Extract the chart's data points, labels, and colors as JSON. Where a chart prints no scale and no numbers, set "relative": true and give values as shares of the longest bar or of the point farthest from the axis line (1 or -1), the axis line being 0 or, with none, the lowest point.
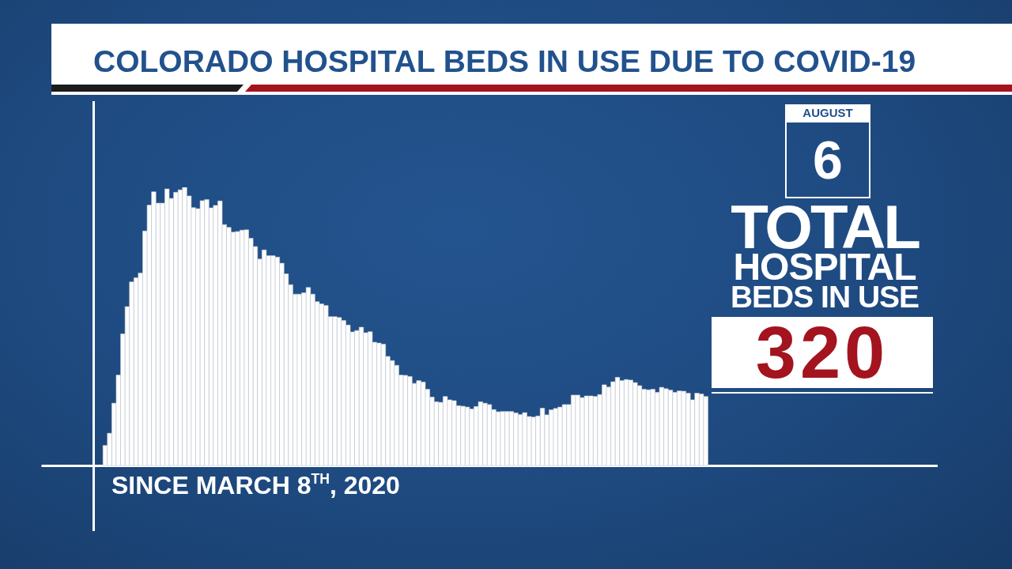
{
  "chart_data": {
    "type": "bar",
    "title": "COLORADO HOSPITAL BEDS IN USE DUE TO COVID-19",
    "xlabel": "SINCE MARCH 8$^{TH}$, 2020",
    "relative": true,
    "color": "#ffffff",
    "categories": [
      null,
      null,
      null,
      null,
      null,
      null,
      null,
      null,
      null,
      null,
      null,
      null,
      null,
      null,
      null,
      null,
      null,
      null,
      null,
      null,
      null,
      null,
      null,
      null,
      null,
      null,
      null,
      null,
      null,
      null,
      null,
      null,
      null,
      null,
      null,
      null,
      null,
      null,
      null,
      null,
      null,
      null,
      null,
      null,
      null,
      null,
      null,
      null,
      null,
      null,
      null,
      null,
      null,
      null,
      null,
      null,
      null,
      null,
      null,
      null,
      null,
      null,
      null,
      null,
      null,
      null,
      null,
      null,
      null,
      null,
      null,
      null,
      null,
      null,
      null,
      null,
      null,
      null,
      null,
      null,
      null,
      null,
      null,
      null,
      null,
      null,
      null,
      null,
      null,
      null,
      null,
      null,
      null,
      null,
      null,
      null,
      null,
      null,
      null,
      null,
      null,
      null,
      null,
      null,
      null,
      null,
      null,
      null,
      null,
      null,
      null,
      null,
      null,
      null,
      null,
      null,
      null,
      null,
      null,
      null,
      null,
      null,
      null,
      null,
      null,
      null,
      null,
      null,
      null,
      null,
      null,
      null,
      null,
      null,
      null,
      null,
      null
    ],
    "values": [
      0.072,
      0.116,
      0.224,
      0.325,
      0.473,
      0.571,
      0.66,
      0.675,
      0.692,
      0.843,
      0.936,
      0.984,
      0.943,
      0.943,
      0.994,
      0.96,
      0.982,
      0.991,
      1,
      0.969,
      0.927,
      0.923,
      0.952,
      0.956,
      0.926,
      0.935,
      0.951,
      0.866,
      0.856,
      0.839,
      0.841,
      0.846,
      0.847,
      0.817,
      0.787,
      0.742,
      0.775,
      0.754,
      0.754,
      0.749,
      0.727,
      0.689,
      0.65,
      0.616,
      0.616,
      0.621,
      0.64,
      0.616,
      0.589,
      0.581,
      0.575,
      0.535,
      0.535,
      0.532,
      0.521,
      0.505,
      0.48,
      0.485,
      0.497,
      0.477,
      0.481,
      0.443,
      0.44,
      0.436,
      0.392,
      0.377,
      0.36,
      0.325,
      0.324,
      0.32,
      0.295,
      0.305,
      0.3,
      0.274,
      0.246,
      0.229,
      0.227,
      0.248,
      0.236,
      0.233,
      0.215,
      0.213,
      0.21,
      0.203,
      0.212,
      0.229,
      0.224,
      0.219,
      0.201,
      0.193,
      0.194,
      0.194,
      0.194,
      0.189,
      0.183,
      0.19,
      0.176,
      0.174,
      0.178,
      0.206,
      0.182,
      0.2,
      0.205,
      0.21,
      0.219,
      0.219,
      0.253,
      0.253,
      0.244,
      0.25,
      0.25,
      0.248,
      0.255,
      0.29,
      0.282,
      0.301,
      0.317,
      0.305,
      0.309,
      0.307,
      0.298,
      0.287,
      0.274,
      0.272,
      0.274,
      0.263,
      0.281,
      0.276,
      0.271,
      0.263,
      0.268,
      0.267,
      0.26,
      0.236,
      0.26,
      0.257,
      0.248
    ],
    "annotations": [
      "AUGUST",
      "6",
      "TOTAL",
      "HOSPITAL",
      "BEDS IN USE",
      "320"
    ]
  }
}
